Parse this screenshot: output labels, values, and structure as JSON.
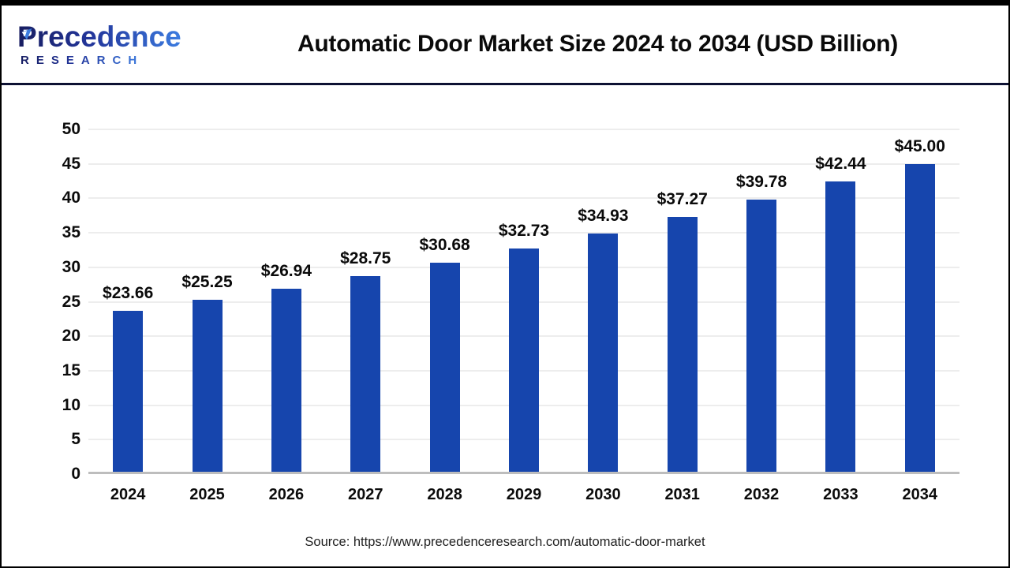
{
  "header": {
    "logo_line1": "Precedence",
    "logo_line2": "RESEARCH",
    "title": "Automatic Door Market Size 2024 to 2034 (USD Billion)"
  },
  "chart_data": {
    "type": "bar",
    "title": "Automatic Door Market Size 2024 to 2034 (USD Billion)",
    "categories": [
      "2024",
      "2025",
      "2026",
      "2027",
      "2028",
      "2029",
      "2030",
      "2031",
      "2032",
      "2033",
      "2034"
    ],
    "values": [
      23.66,
      25.25,
      26.94,
      28.75,
      30.68,
      32.73,
      34.93,
      37.27,
      39.78,
      42.44,
      45.0
    ],
    "value_labels": [
      "$23.66",
      "$25.25",
      "$26.94",
      "$28.75",
      "$30.68",
      "$32.73",
      "$34.93",
      "$37.27",
      "$39.78",
      "$42.44",
      "$45.00"
    ],
    "xlabel": "",
    "ylabel": "",
    "ylim": [
      0,
      50
    ],
    "ytick_step": 5,
    "grid": "horizontal",
    "legend": "none",
    "bar_color": "#1645ad",
    "gridline_color": "#ededed",
    "baseline_color": "#bdbdbd"
  },
  "footer": {
    "source": "Source: https://www.precedenceresearch.com/automatic-door-market"
  }
}
